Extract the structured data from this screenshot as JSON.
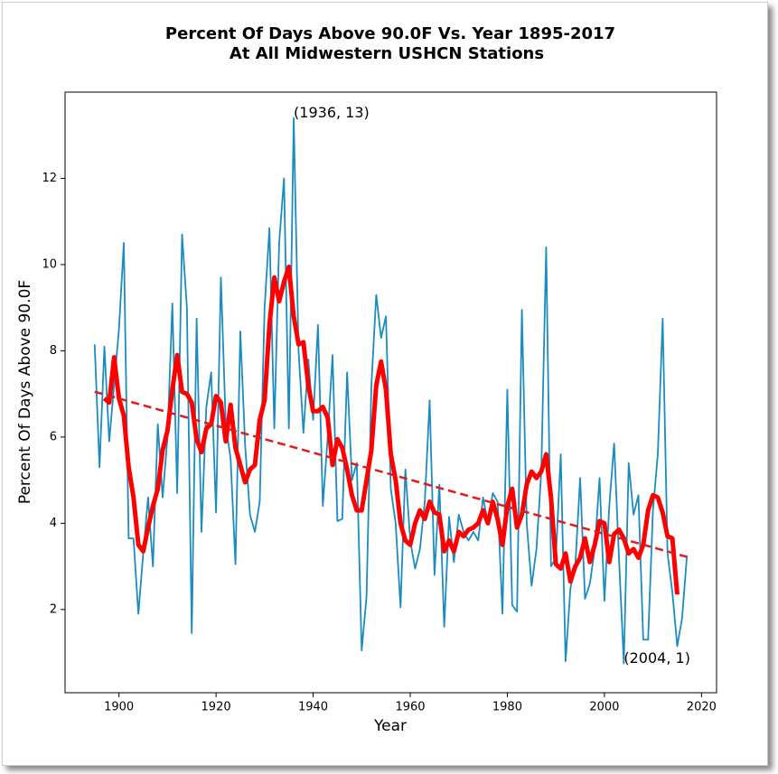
{
  "chart_data": {
    "type": "line",
    "title": "Percent Of Days Above 90.0F Vs. Year 1895-2017",
    "subtitle": "At All Midwestern USHCN Stations",
    "x_label": "Year",
    "y_label": "Percent Of Days Above 90.0F",
    "xlim": [
      1888.9,
      2023.1
    ],
    "ylim": [
      0.07,
      14.0
    ],
    "xticks": [
      1900,
      1920,
      1940,
      1960,
      1980,
      2000,
      2020
    ],
    "yticks": [
      2,
      4,
      6,
      8,
      10,
      12
    ],
    "x": [
      1895,
      1896,
      1897,
      1898,
      1899,
      1900,
      1901,
      1902,
      1903,
      1904,
      1905,
      1906,
      1907,
      1908,
      1909,
      1910,
      1911,
      1912,
      1913,
      1914,
      1915,
      1916,
      1917,
      1918,
      1919,
      1920,
      1921,
      1922,
      1923,
      1924,
      1925,
      1926,
      1927,
      1928,
      1929,
      1930,
      1931,
      1932,
      1933,
      1934,
      1935,
      1936,
      1937,
      1938,
      1939,
      1940,
      1941,
      1942,
      1943,
      1944,
      1945,
      1946,
      1947,
      1948,
      1949,
      1950,
      1951,
      1952,
      1953,
      1954,
      1955,
      1956,
      1957,
      1958,
      1959,
      1960,
      1961,
      1962,
      1963,
      1964,
      1965,
      1966,
      1967,
      1968,
      1969,
      1970,
      1971,
      1972,
      1973,
      1974,
      1975,
      1976,
      1977,
      1978,
      1979,
      1980,
      1981,
      1982,
      1983,
      1984,
      1985,
      1986,
      1987,
      1988,
      1989,
      1990,
      1991,
      1992,
      1993,
      1994,
      1995,
      1996,
      1997,
      1998,
      1999,
      2000,
      2001,
      2002,
      2003,
      2004,
      2005,
      2006,
      2007,
      2008,
      2009,
      2010,
      2011,
      2012,
      2013,
      2014,
      2015,
      2016,
      2017
    ],
    "series": [
      {
        "color": "#1a8cc0",
        "width": 1.8,
        "values": [
          8.15,
          5.3,
          8.1,
          5.9,
          7.2,
          8.5,
          10.5,
          3.65,
          3.65,
          1.9,
          3.3,
          4.6,
          3.0,
          6.3,
          4.6,
          6.0,
          9.1,
          4.7,
          10.7,
          9.0,
          1.45,
          8.75,
          3.8,
          6.7,
          7.5,
          4.25,
          9.7,
          6.3,
          5.5,
          3.05,
          8.45,
          5.8,
          4.2,
          3.8,
          4.5,
          9.0,
          10.85,
          6.2,
          10.5,
          12.0,
          6.2,
          13.4,
          8.0,
          6.1,
          7.8,
          6.4,
          8.6,
          4.4,
          6.0,
          7.9,
          4.05,
          4.1,
          7.5,
          5.0,
          5.4,
          1.05,
          2.3,
          7.2,
          9.3,
          8.3,
          8.8,
          4.8,
          4.0,
          2.05,
          5.25,
          3.6,
          2.95,
          3.4,
          4.5,
          6.85,
          2.8,
          4.9,
          1.6,
          4.15,
          3.1,
          4.2,
          3.8,
          3.6,
          3.8,
          3.6,
          4.6,
          4.0,
          4.7,
          4.5,
          1.9,
          7.1,
          2.1,
          1.95,
          8.95,
          4.0,
          2.55,
          3.4,
          5.2,
          10.4,
          3.0,
          3.2,
          5.6,
          0.8,
          2.5,
          3.0,
          5.05,
          2.25,
          2.6,
          3.4,
          5.05,
          2.2,
          4.4,
          5.85,
          3.2,
          0.75,
          5.4,
          4.2,
          4.65,
          1.3,
          1.3,
          4.3,
          5.6,
          8.75,
          3.3,
          2.4,
          1.15,
          1.8,
          3.25
        ]
      },
      {
        "color": "#ff0000",
        "width": 5,
        "values": [
          null,
          null,
          6.9,
          6.8,
          7.85,
          6.9,
          6.5,
          5.3,
          4.6,
          3.5,
          3.35,
          3.9,
          4.4,
          4.8,
          5.7,
          6.15,
          7.1,
          7.9,
          7.05,
          7.0,
          6.8,
          5.95,
          5.65,
          6.2,
          6.3,
          6.95,
          6.8,
          5.9,
          6.75,
          5.75,
          5.35,
          4.95,
          5.25,
          5.35,
          6.4,
          6.85,
          8.6,
          9.7,
          9.15,
          9.6,
          9.95,
          8.8,
          8.15,
          8.2,
          7.2,
          6.6,
          6.6,
          6.7,
          6.45,
          5.35,
          5.95,
          5.75,
          5.25,
          4.65,
          4.3,
          4.3,
          5.0,
          5.7,
          7.2,
          7.75,
          7.1,
          5.6,
          5.0,
          4.0,
          3.6,
          3.5,
          4.0,
          4.3,
          4.1,
          4.5,
          4.25,
          4.2,
          3.35,
          3.6,
          3.35,
          3.8,
          3.7,
          3.85,
          3.9,
          4.0,
          4.3,
          4.0,
          4.5,
          4.1,
          3.5,
          4.4,
          4.8,
          3.9,
          4.2,
          4.9,
          5.2,
          5.05,
          5.2,
          5.6,
          4.6,
          3.05,
          2.95,
          3.3,
          2.65,
          3.0,
          3.2,
          3.65,
          3.1,
          3.5,
          4.05,
          4.0,
          3.1,
          3.75,
          3.85,
          3.65,
          3.3,
          3.4,
          3.2,
          3.5,
          4.3,
          4.65,
          4.6,
          4.25,
          3.7,
          3.65,
          2.35,
          null,
          null
        ]
      },
      {
        "color": "#e31a1c",
        "width": 2.5,
        "dashed": true,
        "x": [
          1895,
          2017
        ],
        "values": [
          7.05,
          3.22
        ]
      }
    ],
    "annotations": [
      {
        "text": "(1936, 13)",
        "x": 1936,
        "y": 13.4
      },
      {
        "text": "(2004, 1)",
        "x": 2004,
        "y": 0.75
      }
    ]
  }
}
